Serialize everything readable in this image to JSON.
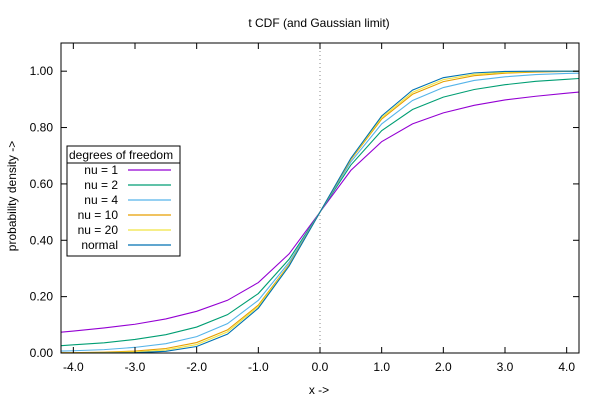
{
  "chart_data": {
    "type": "line",
    "title": "t CDF (and Gaussian limit)",
    "xlabel": "x ->",
    "ylabel": "probability density ->",
    "xlim": [
      -4.2,
      4.2
    ],
    "ylim": [
      0,
      1.1
    ],
    "x_ticks": [
      -4,
      -3,
      -2,
      -1,
      0,
      1,
      2,
      3,
      4
    ],
    "x_tick_labels": [
      "-4.0",
      "-3.0",
      "-2.0",
      "-1.0",
      "0.0",
      "1.0",
      "2.0",
      "3.0",
      "4.0"
    ],
    "y_ticks": [
      0,
      0.2,
      0.4,
      0.6,
      0.8,
      1.0
    ],
    "y_tick_labels": [
      "0.00",
      "0.20",
      "0.40",
      "0.60",
      "0.80",
      "1.00"
    ],
    "grid": false,
    "reference_line": {
      "x": 0,
      "style": "dotted"
    },
    "legend": {
      "title": "degrees of freedom",
      "position": "left-middle"
    },
    "x": [
      -4.2,
      -4.0,
      -3.5,
      -3.0,
      -2.5,
      -2.0,
      -1.5,
      -1.0,
      -0.5,
      0.0,
      0.5,
      1.0,
      1.5,
      2.0,
      2.5,
      3.0,
      3.5,
      4.0,
      4.2
    ],
    "series": [
      {
        "name": "nu = 1",
        "color": "#9400d3",
        "values": [
          0.074,
          0.078,
          0.089,
          0.102,
          0.121,
          0.148,
          0.187,
          0.25,
          0.352,
          0.5,
          0.648,
          0.75,
          0.813,
          0.852,
          0.879,
          0.898,
          0.911,
          0.922,
          0.926
        ]
      },
      {
        "name": "nu = 2",
        "color": "#009e73",
        "values": [
          0.026,
          0.029,
          0.036,
          0.048,
          0.065,
          0.092,
          0.136,
          0.211,
          0.333,
          0.5,
          0.667,
          0.789,
          0.864,
          0.908,
          0.935,
          0.952,
          0.964,
          0.971,
          0.974
        ]
      },
      {
        "name": "nu = 4",
        "color": "#56b4e9",
        "values": [
          0.007,
          0.008,
          0.012,
          0.02,
          0.033,
          0.058,
          0.104,
          0.187,
          0.322,
          0.5,
          0.678,
          0.813,
          0.896,
          0.942,
          0.967,
          0.98,
          0.988,
          0.992,
          0.993
        ]
      },
      {
        "name": "nu = 10",
        "color": "#e69f00",
        "values": [
          0.001,
          0.001,
          0.003,
          0.007,
          0.016,
          0.037,
          0.082,
          0.17,
          0.314,
          0.5,
          0.686,
          0.83,
          0.918,
          0.963,
          0.984,
          0.993,
          0.997,
          0.999,
          0.999
        ]
      },
      {
        "name": "nu = 20",
        "color": "#f0e442",
        "values": [
          0.0002,
          0.0004,
          0.001,
          0.004,
          0.011,
          0.03,
          0.075,
          0.165,
          0.311,
          0.5,
          0.689,
          0.835,
          0.925,
          0.97,
          0.989,
          0.996,
          0.999,
          1.0,
          1.0
        ]
      },
      {
        "name": "normal",
        "color": "#0072b2",
        "values": [
          0.0,
          0.0,
          0.0002,
          0.001,
          0.006,
          0.023,
          0.067,
          0.159,
          0.309,
          0.5,
          0.691,
          0.841,
          0.933,
          0.977,
          0.994,
          0.999,
          1.0,
          1.0,
          1.0
        ]
      }
    ]
  }
}
